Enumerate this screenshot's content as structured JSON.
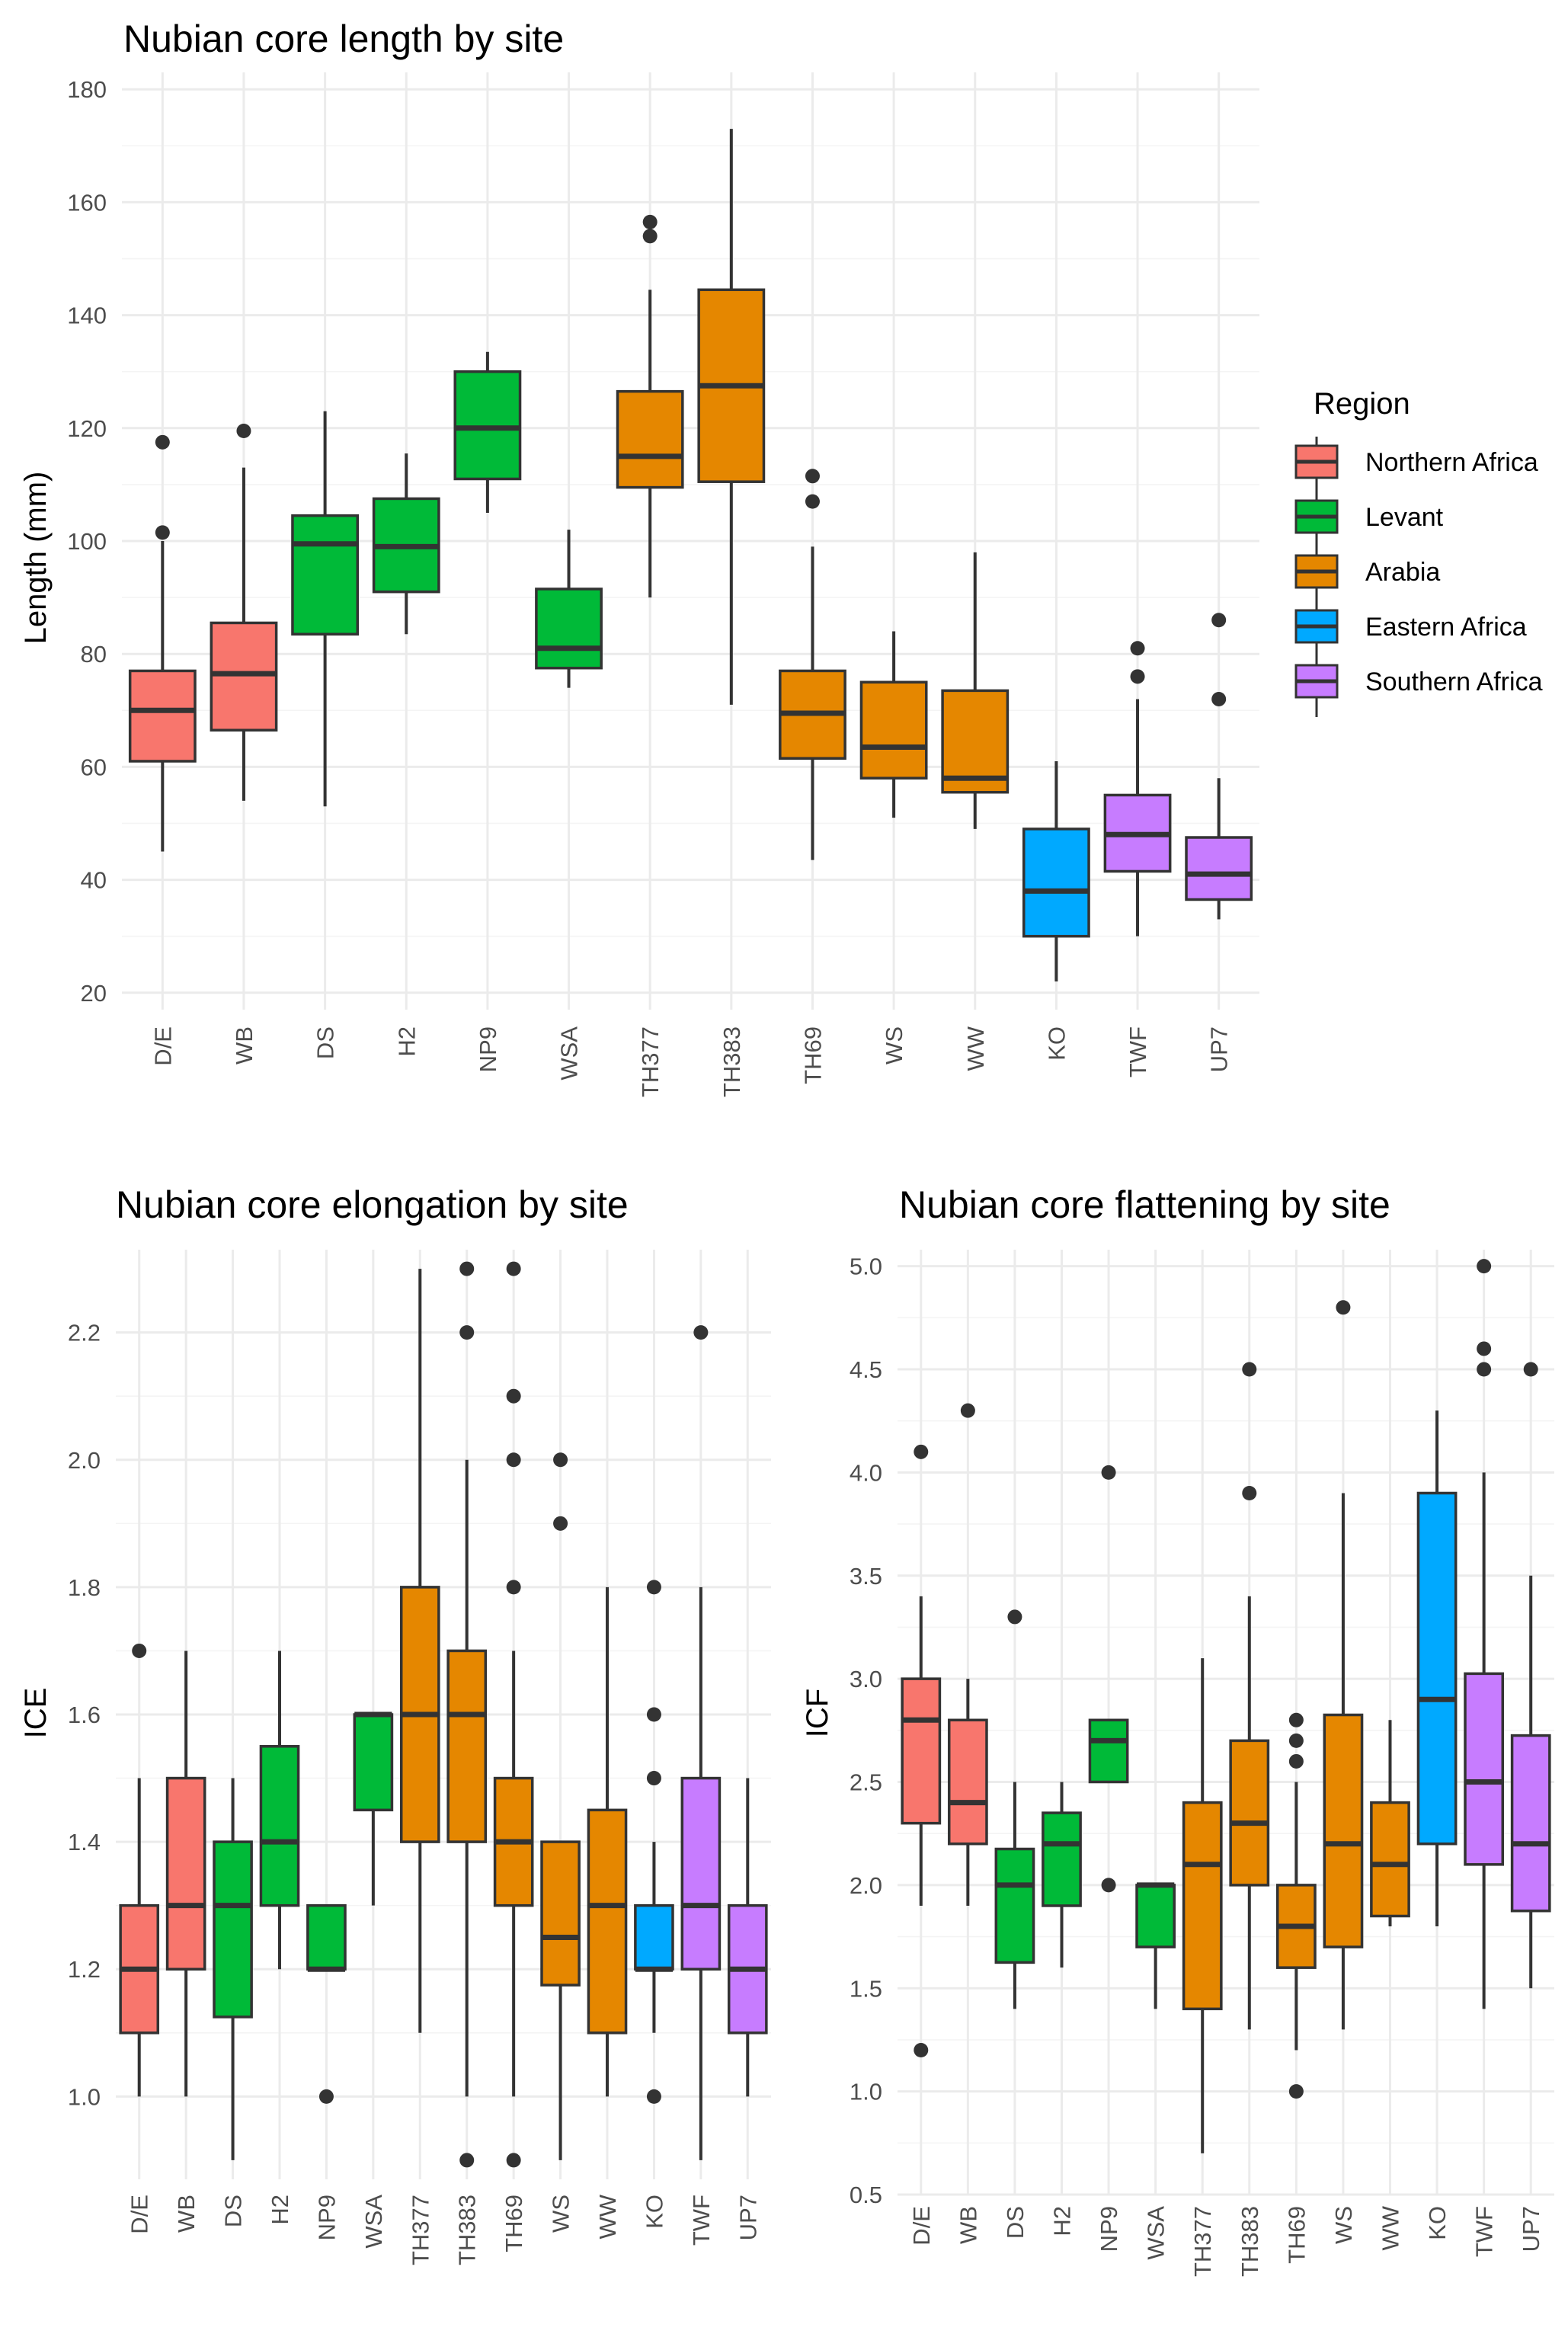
{
  "regions": {
    "Northern Africa": "#F8766D",
    "Levant": "#00BA38",
    "Arabia": "#E58700",
    "Eastern Africa": "#00A9FF",
    "Southern Africa": "#C77CFF"
  },
  "legend": {
    "title": "Region",
    "items": [
      {
        "label": "Northern Africa",
        "color": "#F8766D"
      },
      {
        "label": "Levant",
        "color": "#00BA38"
      },
      {
        "label": "Arabia",
        "color": "#E58700"
      },
      {
        "label": "Eastern Africa",
        "color": "#00A9FF"
      },
      {
        "label": "Southern Africa",
        "color": "#C77CFF"
      }
    ]
  },
  "chart_data": [
    {
      "id": "length",
      "type": "box",
      "title": "Nubian core length by site",
      "xlabel": "",
      "ylabel": "Length (mm)",
      "ylim": [
        17,
        183
      ],
      "yticks": [
        20,
        40,
        60,
        80,
        100,
        120,
        140,
        160,
        180
      ],
      "tick_labels": [
        "20",
        "40",
        "60",
        "80",
        "100",
        "120",
        "140",
        "160",
        "180"
      ],
      "categories": [
        "D/E",
        "WB",
        "DS",
        "H2",
        "NP9",
        "WSA",
        "TH377",
        "TH383",
        "TH69",
        "WS",
        "WW",
        "KO",
        "TWF",
        "UP7"
      ],
      "series": [
        {
          "site": "D/E",
          "region": "Northern Africa",
          "min": 45,
          "q1": 61,
          "median": 70,
          "q3": 77,
          "max": 100,
          "outliers": [
            101.5,
            117.5
          ]
        },
        {
          "site": "WB",
          "region": "Northern Africa",
          "min": 54,
          "q1": 66.5,
          "median": 76.5,
          "q3": 85.5,
          "max": 113,
          "outliers": [
            119.5
          ]
        },
        {
          "site": "DS",
          "region": "Levant",
          "min": 53,
          "q1": 83.5,
          "median": 99.5,
          "q3": 104.5,
          "max": 123,
          "outliers": []
        },
        {
          "site": "H2",
          "region": "Levant",
          "min": 83.5,
          "q1": 91,
          "median": 99,
          "q3": 107.5,
          "max": 115.5,
          "outliers": []
        },
        {
          "site": "NP9",
          "region": "Levant",
          "min": 105,
          "q1": 111,
          "median": 120,
          "q3": 130,
          "max": 133.5,
          "outliers": []
        },
        {
          "site": "WSA",
          "region": "Levant",
          "min": 74,
          "q1": 77.5,
          "median": 81,
          "q3": 91.5,
          "max": 102,
          "outliers": []
        },
        {
          "site": "TH377",
          "region": "Arabia",
          "min": 90,
          "q1": 109.5,
          "median": 115,
          "q3": 126.5,
          "max": 144.5,
          "outliers": [
            154,
            156.5
          ]
        },
        {
          "site": "TH383",
          "region": "Arabia",
          "min": 71,
          "q1": 110.5,
          "median": 127.5,
          "q3": 144.5,
          "max": 173,
          "outliers": []
        },
        {
          "site": "TH69",
          "region": "Arabia",
          "min": 43.5,
          "q1": 61.5,
          "median": 69.5,
          "q3": 77,
          "max": 99,
          "outliers": [
            107,
            111.5
          ]
        },
        {
          "site": "WS",
          "region": "Arabia",
          "min": 51,
          "q1": 58,
          "median": 63.5,
          "q3": 75,
          "max": 84,
          "outliers": []
        },
        {
          "site": "WW",
          "region": "Arabia",
          "min": 49,
          "q1": 55.5,
          "median": 58,
          "q3": 73.5,
          "max": 98,
          "outliers": []
        },
        {
          "site": "KO",
          "region": "Eastern Africa",
          "min": 22,
          "q1": 30,
          "median": 38,
          "q3": 49,
          "max": 61,
          "outliers": []
        },
        {
          "site": "TWF",
          "region": "Southern Africa",
          "min": 30,
          "q1": 41.5,
          "median": 48,
          "q3": 55,
          "max": 72,
          "outliers": [
            76,
            81
          ]
        },
        {
          "site": "UP7",
          "region": "Southern Africa",
          "min": 33,
          "q1": 36.5,
          "median": 41,
          "q3": 47.5,
          "max": 58,
          "outliers": [
            72,
            86
          ]
        }
      ]
    },
    {
      "id": "elongation",
      "type": "box",
      "title": "Nubian core elongation by site",
      "xlabel": "",
      "ylabel": "ICE",
      "ylim": [
        0.87,
        2.33
      ],
      "yticks": [
        1.0,
        1.2,
        1.4,
        1.6,
        1.8,
        2.0,
        2.2
      ],
      "tick_labels": [
        "1.0",
        "1.2",
        "1.4",
        "1.6",
        "1.8",
        "2.0",
        "2.2"
      ],
      "categories": [
        "D/E",
        "WB",
        "DS",
        "H2",
        "NP9",
        "WSA",
        "TH377",
        "TH383",
        "TH69",
        "WS",
        "WW",
        "KO",
        "TWF",
        "UP7"
      ],
      "series": [
        {
          "site": "D/E",
          "region": "Northern Africa",
          "min": 1.0,
          "q1": 1.1,
          "median": 1.2,
          "q3": 1.3,
          "max": 1.5,
          "outliers": [
            1.7
          ]
        },
        {
          "site": "WB",
          "region": "Northern Africa",
          "min": 1.0,
          "q1": 1.2,
          "median": 1.3,
          "q3": 1.5,
          "max": 1.7,
          "outliers": []
        },
        {
          "site": "DS",
          "region": "Levant",
          "min": 0.9,
          "q1": 1.125,
          "median": 1.3,
          "q3": 1.4,
          "max": 1.5,
          "outliers": []
        },
        {
          "site": "H2",
          "region": "Levant",
          "min": 1.2,
          "q1": 1.3,
          "median": 1.4,
          "q3": 1.55,
          "max": 1.7,
          "outliers": []
        },
        {
          "site": "NP9",
          "region": "Levant",
          "min": 1.2,
          "q1": 1.2,
          "median": 1.2,
          "q3": 1.3,
          "max": 1.3,
          "outliers": [
            1.0
          ]
        },
        {
          "site": "WSA",
          "region": "Levant",
          "min": 1.3,
          "q1": 1.45,
          "median": 1.6,
          "q3": 1.6,
          "max": 1.6,
          "outliers": []
        },
        {
          "site": "TH377",
          "region": "Arabia",
          "min": 1.1,
          "q1": 1.4,
          "median": 1.6,
          "q3": 1.8,
          "max": 2.3,
          "outliers": []
        },
        {
          "site": "TH383",
          "region": "Arabia",
          "min": 1.0,
          "q1": 1.4,
          "median": 1.6,
          "q3": 1.7,
          "max": 2.0,
          "outliers": [
            0.9,
            2.2,
            2.3
          ]
        },
        {
          "site": "TH69",
          "region": "Arabia",
          "min": 1.0,
          "q1": 1.3,
          "median": 1.4,
          "q3": 1.5,
          "max": 1.7,
          "outliers": [
            0.9,
            1.8,
            2.0,
            2.1,
            2.3
          ]
        },
        {
          "site": "WS",
          "region": "Arabia",
          "min": 0.9,
          "q1": 1.175,
          "median": 1.25,
          "q3": 1.4,
          "max": 1.4,
          "outliers": [
            1.9,
            2.0
          ]
        },
        {
          "site": "WW",
          "region": "Arabia",
          "min": 1.0,
          "q1": 1.1,
          "median": 1.3,
          "q3": 1.45,
          "max": 1.8,
          "outliers": []
        },
        {
          "site": "KO",
          "region": "Eastern Africa",
          "min": 1.1,
          "q1": 1.2,
          "median": 1.2,
          "q3": 1.3,
          "max": 1.4,
          "outliers": [
            1.0,
            1.5,
            1.6,
            1.8
          ]
        },
        {
          "site": "TWF",
          "region": "Southern Africa",
          "min": 0.9,
          "q1": 1.2,
          "median": 1.3,
          "q3": 1.5,
          "max": 1.8,
          "outliers": [
            2.2
          ]
        },
        {
          "site": "UP7",
          "region": "Southern Africa",
          "min": 1.0,
          "q1": 1.1,
          "median": 1.2,
          "q3": 1.3,
          "max": 1.5,
          "outliers": []
        }
      ]
    },
    {
      "id": "flattening",
      "type": "box",
      "title": "Nubian core flattening by site",
      "xlabel": "",
      "ylabel": "ICF",
      "ylim": [
        0.5,
        5.08
      ],
      "yticks": [
        0.5,
        1.0,
        1.5,
        2.0,
        2.5,
        3.0,
        3.5,
        4.0,
        4.5,
        5.0
      ],
      "tick_labels": [
        "0.5",
        "1.0",
        "1.5",
        "2.0",
        "2.5",
        "3.0",
        "3.5",
        "4.0",
        "4.5",
        "5.0"
      ],
      "categories": [
        "D/E",
        "WB",
        "DS",
        "H2",
        "NP9",
        "WSA",
        "TH377",
        "TH383",
        "TH69",
        "WS",
        "WW",
        "KO",
        "TWF",
        "UP7"
      ],
      "series": [
        {
          "site": "D/E",
          "region": "Northern Africa",
          "min": 1.9,
          "q1": 2.3,
          "median": 2.8,
          "q3": 3.0,
          "max": 3.4,
          "outliers": [
            1.2,
            4.1
          ]
        },
        {
          "site": "WB",
          "region": "Northern Africa",
          "min": 1.9,
          "q1": 2.2,
          "median": 2.4,
          "q3": 2.8,
          "max": 3.0,
          "outliers": [
            4.3
          ]
        },
        {
          "site": "DS",
          "region": "Levant",
          "min": 1.4,
          "q1": 1.625,
          "median": 2.0,
          "q3": 2.175,
          "max": 2.5,
          "outliers": [
            3.3
          ]
        },
        {
          "site": "H2",
          "region": "Levant",
          "min": 1.6,
          "q1": 1.9,
          "median": 2.2,
          "q3": 2.35,
          "max": 2.5,
          "outliers": []
        },
        {
          "site": "NP9",
          "region": "Levant",
          "min": 2.5,
          "q1": 2.5,
          "median": 2.7,
          "q3": 2.8,
          "max": 2.8,
          "outliers": [
            2.0,
            4.0
          ]
        },
        {
          "site": "WSA",
          "region": "Levant",
          "min": 1.4,
          "q1": 1.7,
          "median": 2.0,
          "q3": 2.0,
          "max": 2.0,
          "outliers": []
        },
        {
          "site": "TH377",
          "region": "Arabia",
          "min": 0.7,
          "q1": 1.4,
          "median": 2.1,
          "q3": 2.4,
          "max": 3.1,
          "outliers": []
        },
        {
          "site": "TH383",
          "region": "Arabia",
          "min": 1.3,
          "q1": 2.0,
          "median": 2.3,
          "q3": 2.7,
          "max": 3.4,
          "outliers": [
            3.9,
            4.5
          ]
        },
        {
          "site": "TH69",
          "region": "Arabia",
          "min": 1.2,
          "q1": 1.6,
          "median": 1.8,
          "q3": 2.0,
          "max": 2.5,
          "outliers": [
            1.0,
            2.6,
            2.7,
            2.8
          ]
        },
        {
          "site": "WS",
          "region": "Arabia",
          "min": 1.3,
          "q1": 1.7,
          "median": 2.2,
          "q3": 2.825,
          "max": 3.9,
          "outliers": [
            4.8
          ]
        },
        {
          "site": "WW",
          "region": "Arabia",
          "min": 1.8,
          "q1": 1.85,
          "median": 2.1,
          "q3": 2.4,
          "max": 2.8,
          "outliers": []
        },
        {
          "site": "KO",
          "region": "Eastern Africa",
          "min": 1.8,
          "q1": 2.2,
          "median": 2.9,
          "q3": 3.9,
          "max": 4.3,
          "outliers": []
        },
        {
          "site": "TWF",
          "region": "Southern Africa",
          "min": 1.4,
          "q1": 2.1,
          "median": 2.5,
          "q3": 3.025,
          "max": 4.0,
          "outliers": [
            4.5,
            4.6,
            5.0
          ]
        },
        {
          "site": "UP7",
          "region": "Southern Africa",
          "min": 1.5,
          "q1": 1.875,
          "median": 2.2,
          "q3": 2.725,
          "max": 3.5,
          "outliers": [
            4.5
          ]
        }
      ]
    }
  ]
}
